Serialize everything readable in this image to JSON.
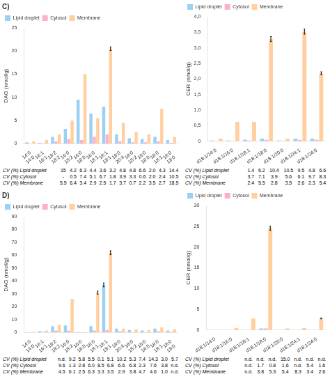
{
  "chart_data": [
    {
      "type": "bar",
      "title": "C)",
      "categories": [
        "14:0\n14:0",
        "16:1\n16:1",
        "18:2\n18:2",
        "16:0\n18:2",
        "16:0\n16:0",
        "16:0\n18:1",
        "18:1\n18:1",
        "18:0\n20:4",
        "18:0\n18:2",
        "18:0\n16:0",
        "18:0\n18:1",
        "18:0\n18:0"
      ],
      "series": [
        {
          "name": "Lipid droplet",
          "values": [
            0.3,
            0.2,
            1.5,
            3.2,
            9.5,
            6.5,
            8.0,
            2.0,
            1.2,
            1.0,
            1.5,
            0.8
          ],
          "cv_label": "CV (%) Lipid droplet",
          "cv": [
            "15",
            "4.2",
            "6.3",
            "4.4",
            "3.6",
            "3.2",
            "4.8",
            "4.8",
            "6.6",
            "2.0",
            "4.3",
            "14.4"
          ]
        },
        {
          "name": "Cytosol",
          "values": [
            0.0,
            0.1,
            0.5,
            1.0,
            0.8,
            1.5,
            2.0,
            0.5,
            0.3,
            0.3,
            0.5,
            0.2
          ],
          "cv_label": "CV (%) Cytosol",
          "cv": [
            "-",
            "0.5",
            "7.4",
            "5.1",
            "6.7",
            "1.8",
            "3.9",
            "3.3",
            "0.6",
            "2.0",
            "2.4",
            "10.5"
          ]
        },
        {
          "name": "Membrane",
          "values": [
            0.5,
            0.8,
            2.0,
            5.0,
            15.0,
            5.5,
            20.5,
            4.5,
            2.5,
            2.0,
            7.5,
            1.5
          ],
          "errors": [
            0,
            0,
            0,
            0,
            0,
            0,
            0.4,
            0,
            0,
            0,
            0,
            0
          ],
          "cv_label": "CV (%) Membrane",
          "cv": [
            "5.5",
            "6.4",
            "3.4",
            "2.9",
            "2.5",
            "1.7",
            "3.7",
            "0.7",
            "2.2",
            "3.5",
            "2.7",
            "18.5"
          ]
        }
      ],
      "ylabel": "DAG (nmol/g)",
      "ylim": [
        0,
        25
      ],
      "yticks": [
        0,
        5,
        10,
        15,
        20,
        25
      ],
      "grid": false,
      "legend": "upper left"
    },
    {
      "type": "bar",
      "categories": [
        "d18:1/14:0",
        "d18:1/16:0",
        "d18:1/18:1",
        "d18:1/18:0",
        "d18:1/20:0",
        "d18:1/24:1",
        "d18:1/24:0"
      ],
      "series": [
        {
          "name": "Lipid droplet",
          "values": [
            0.02,
            0.02,
            0.05,
            0.08,
            0.02,
            0.08,
            0.08
          ],
          "cv_label": "CV (%) Lipid droplet",
          "cv": [
            "1.4",
            "6.2",
            "10.4",
            "10.5",
            "9.5",
            "4.8",
            "6.6"
          ]
        },
        {
          "name": "Cytosol",
          "values": [
            0.01,
            0.01,
            0.02,
            0.04,
            0.01,
            0.04,
            0.04
          ],
          "cv_label": "CV (%) Cytosol",
          "cv": [
            "3.7",
            "7.1",
            "3.9",
            "5.6",
            "6.1",
            "9.7",
            "8.3"
          ]
        },
        {
          "name": "Membrane",
          "values": [
            0.08,
            0.62,
            0.62,
            3.28,
            0.08,
            3.52,
            2.18
          ],
          "errors": [
            0,
            0,
            0,
            0.08,
            0,
            0.08,
            0.05
          ],
          "cv_label": "CV (%) Membrane",
          "cv": [
            "2.4",
            "5.5",
            "2.8",
            "3.5",
            "2.6",
            "2.3",
            "5.4"
          ]
        }
      ],
      "ylabel": "CER (nmol/g)",
      "ylim": [
        0,
        4.0
      ],
      "yticks": [
        0,
        {
          "value": 0.5,
          "label": "0,5"
        },
        {
          "value": 1.0,
          "label": "1,0"
        },
        {
          "value": 1.5,
          "label": "1,5"
        },
        {
          "value": 2.0,
          "label": "2,0"
        },
        {
          "value": 2.5,
          "label": "2,5"
        },
        {
          "value": 3.0,
          "label": "3,0"
        },
        {
          "value": 3.5,
          "label": "3,5"
        },
        {
          "value": 4.0,
          "label": "4,0"
        }
      ],
      "grid": false,
      "legend": "upper left"
    },
    {
      "type": "bar",
      "title": "D)",
      "categories": [
        "14:0\n14:0",
        "16:1\n16:1",
        "18:2\n18:2",
        "16:0\n18:2",
        "16:0\n16:0",
        "16:0\n18:1",
        "18:1\n18:1",
        "18:0\n20:4",
        "18:0\n18:2",
        "18:0\n16:0",
        "18:0\n18:1",
        "18:0\n18:0"
      ],
      "series": [
        {
          "name": "Lipid droplet",
          "values": [
            0.3,
            1.0,
            5.0,
            5.5,
            0.5,
            5.0,
            37.0,
            3.0,
            2.0,
            1.5,
            3.0,
            1.5
          ],
          "errors": [
            0,
            0,
            0,
            0,
            0,
            0,
            1.5,
            0,
            0,
            0,
            0,
            0
          ],
          "cv_label": "CV (%) Lipid droplet",
          "cv": [
            "n.d.",
            "9.2",
            "5.8",
            "5.5",
            "0.1",
            "5.1",
            "10.2",
            "5.3",
            "7.4",
            "14.3",
            "3.0",
            "5.7"
          ]
        },
        {
          "name": "Cytosol",
          "values": [
            0.2,
            0.5,
            1.5,
            1.5,
            0.3,
            1.5,
            2.0,
            1.0,
            0.5,
            0.5,
            1.0,
            0.5
          ],
          "cv_label": "CV (%) Cytosol",
          "cv": [
            "9.6",
            "1.3",
            "2.8",
            "6.0",
            "8.5",
            "6.8",
            "6.6",
            "6.8",
            "2.3",
            "7.6",
            "3.8",
            "n.d."
          ]
        },
        {
          "name": "Membrane",
          "values": [
            0.5,
            1.5,
            6.0,
            26.0,
            0.5,
            31.0,
            62.0,
            3.0,
            2.5,
            2.0,
            4.0,
            2.5
          ],
          "errors": [
            0,
            0,
            0,
            0,
            0,
            1.2,
            1.5,
            0,
            0,
            0,
            0,
            0
          ],
          "cv_label": "CV (%) Membrane",
          "cv": [
            "4.5",
            "6.1",
            "2.5",
            "6.3",
            "3.3",
            "3.5",
            "2.9",
            "3.8",
            "4.7",
            "4.6",
            "1.0",
            "n.d."
          ]
        }
      ],
      "ylabel": "DAG (nmol/g)",
      "ylim": [
        0,
        90
      ],
      "yticks": [
        0,
        10,
        20,
        30,
        40,
        50,
        60,
        70,
        80,
        90
      ],
      "grid": false,
      "legend": "upper left"
    },
    {
      "type": "bar",
      "categories": [
        "d18:1/14:0",
        "d18:1/16:0",
        "d18:1/18:1",
        "d18:1/18:0",
        "d18:1/20:0",
        "d18:1/24:1",
        "d18:1/24:0"
      ],
      "series": [
        {
          "name": "Lipid droplet",
          "values": [
            0.0,
            0.0,
            0.0,
            0.4,
            0.0,
            0.0,
            0.0
          ],
          "cv_label": "CV (%) Lipid droplet",
          "cv": [
            "n.d.",
            "n.d.",
            "n.d.",
            "15.0",
            "n.d.",
            "n.d.",
            "n.d."
          ]
        },
        {
          "name": "Cytosol",
          "values": [
            0.0,
            0.0,
            0.0,
            0.4,
            0.0,
            0.0,
            0.0
          ],
          "cv_label": "CV (%) Cytosol",
          "cv": [
            "n.d.",
            "1.7",
            "0.8",
            "1.6",
            "n.d.",
            "5.4",
            "1.6"
          ]
        },
        {
          "name": "Membrane",
          "values": [
            0.0,
            0.5,
            2.8,
            24.5,
            0.4,
            0.5,
            2.8
          ],
          "errors": [
            0,
            0,
            0,
            0.5,
            0,
            0,
            0.1
          ],
          "cv_label": "CV (%) Membrane",
          "cv": [
            "n.d.",
            "3.8",
            "5.3",
            "5.4",
            "8.3",
            "3.4",
            "2.6"
          ]
        }
      ],
      "ylabel": "CER (nmol/g)",
      "ylim": [
        0,
        30
      ],
      "yticks": [
        0,
        5,
        10,
        15,
        20,
        25,
        30
      ],
      "grid": false,
      "legend": "upper left"
    }
  ]
}
